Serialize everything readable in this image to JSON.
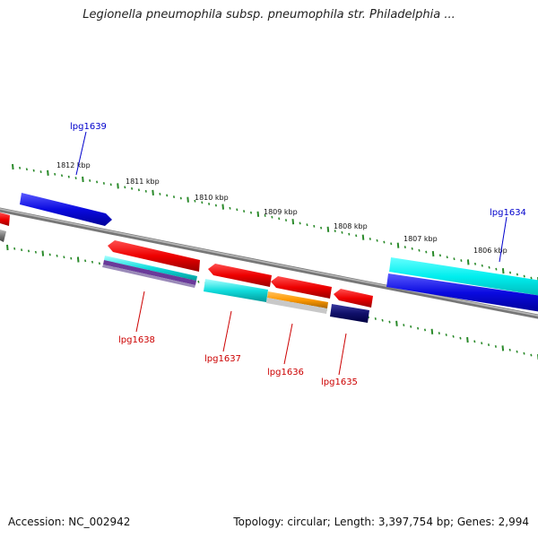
{
  "title": "Legionella pneumophila subsp. pneumophila str. Philadelphia ...",
  "footer": {
    "accession": "Accession: NC_002942",
    "summary": "Topology: circular; Length: 3,397,754 bp; Genes: 2,994"
  },
  "colors": {
    "backbone": "#7a7a7a",
    "tick": "#2a8a2a",
    "label_forward": "#0000cc",
    "label_reverse": "#cc0000"
  },
  "kbp_labels": [
    "1812 kbp",
    "1811 kbp",
    "1810 kbp",
    "1809 kbp",
    "1808 kbp",
    "1807 kbp",
    "1806 kbp"
  ],
  "genes": [
    {
      "name": "lpg1639",
      "strand": "+",
      "color": "#1010e0"
    },
    {
      "name": "lpg1638",
      "strand": "-",
      "color": "#ee0000"
    },
    {
      "name": "lpg1637",
      "strand": "-",
      "color": "#ee0000"
    },
    {
      "name": "lpg1636",
      "strand": "-",
      "color": "#ee0000"
    },
    {
      "name": "lpg1635",
      "strand": "-",
      "color": "#ee0000"
    },
    {
      "name": "lpg1634",
      "strand": "+",
      "color": "#1010e0"
    }
  ]
}
